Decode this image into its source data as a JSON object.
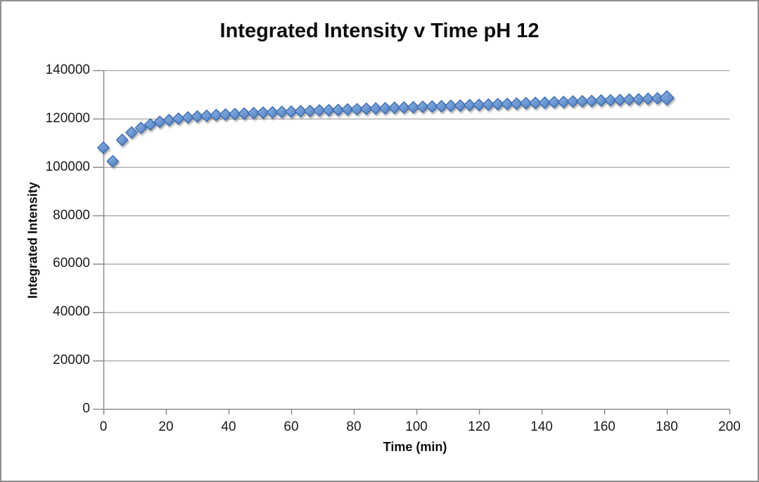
{
  "chart_data": {
    "type": "scatter",
    "title": "Integrated Intensity v Time pH 12",
    "xlabel": "Time (min)",
    "ylabel": "Integrated Intensity",
    "xlim": [
      0,
      200
    ],
    "ylim": [
      0,
      140000
    ],
    "x_ticks": [
      0,
      20,
      40,
      60,
      80,
      100,
      120,
      140,
      160,
      180,
      200
    ],
    "y_ticks": [
      0,
      20000,
      40000,
      60000,
      80000,
      100000,
      120000,
      140000
    ],
    "grid": "horizontal-only",
    "legend": "none",
    "marker_shape": "diamond",
    "series": [
      {
        "x": [
          0,
          3,
          6,
          9,
          12,
          15,
          18,
          21,
          24,
          27,
          30,
          33,
          36,
          39,
          42,
          45,
          48,
          51,
          54,
          57,
          60,
          63,
          66,
          69,
          72,
          75,
          78,
          81,
          84,
          87,
          90,
          93,
          96,
          99,
          102,
          105,
          108,
          111,
          114,
          117,
          120,
          123,
          126,
          129,
          132,
          135,
          138,
          141,
          144,
          147,
          150,
          153,
          156,
          159,
          162,
          165,
          168,
          171,
          174,
          177,
          180
        ],
        "y": [
          108000,
          102400,
          111200,
          114300,
          116200,
          117600,
          118700,
          119400,
          120000,
          120500,
          120900,
          121200,
          121500,
          121700,
          121900,
          122100,
          122300,
          122500,
          122600,
          122800,
          122900,
          123100,
          123200,
          123400,
          123500,
          123600,
          123800,
          123900,
          124100,
          124200,
          124300,
          124500,
          124600,
          124700,
          124900,
          125000,
          125100,
          125300,
          125400,
          125600,
          125700,
          125800,
          126000,
          126100,
          126200,
          126400,
          126500,
          126600,
          126800,
          126900,
          127100,
          127200,
          127300,
          127500,
          127600,
          127700,
          127900,
          128000,
          128200,
          128400,
          128600
        ]
      }
    ]
  },
  "colors": {
    "background": "#ffffff",
    "frame_border": "#8f8f8f",
    "gridline": "#a6a6a6",
    "axis": "#8c8c8c",
    "text": "#0d0d0d",
    "marker_fill_light": "#8fb4e3",
    "marker_fill_dark": "#4e7ec1",
    "marker_stroke": "#3a6cb0"
  }
}
